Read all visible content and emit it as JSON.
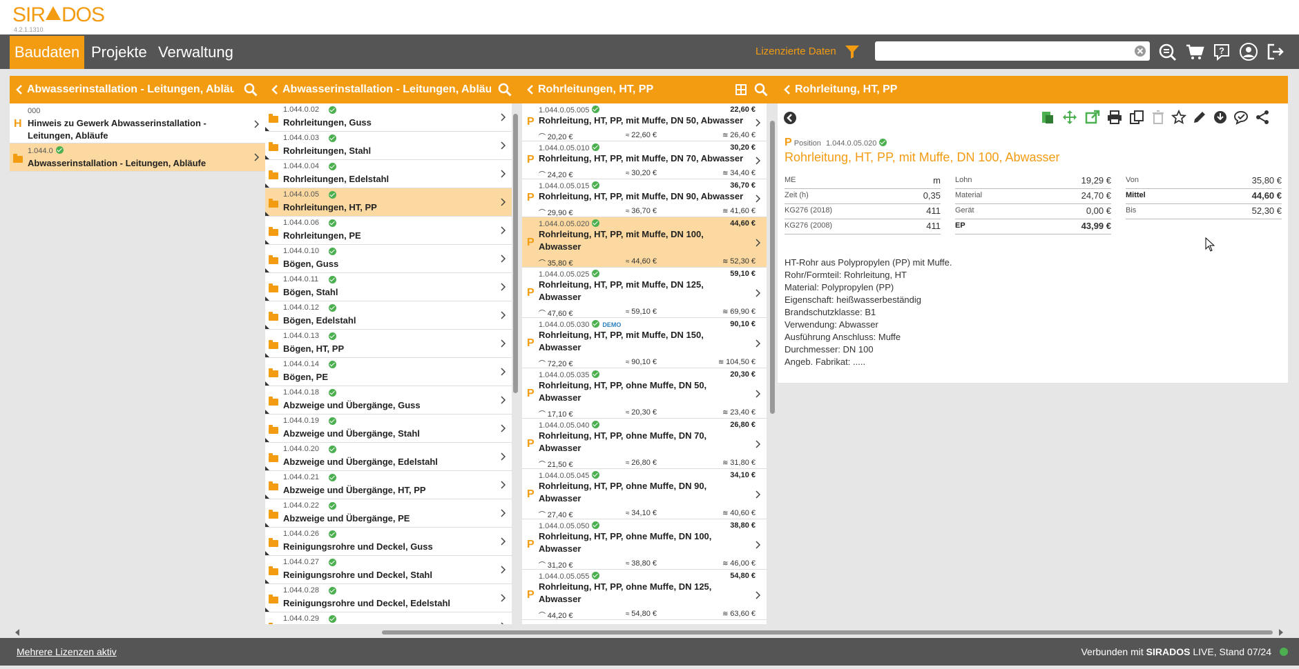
{
  "app": {
    "logo_left": "SIR",
    "logo_right": "DOS",
    "version": "4.2.1.1310"
  },
  "nav": {
    "tabs": [
      "Baudaten",
      "Projekte",
      "Verwaltung"
    ],
    "licensed_label": "Lizenzierte Daten",
    "search_value": ""
  },
  "col1": {
    "title": "Abwasserinstallation - Leitungen, Abläufe",
    "items": [
      {
        "letter": "H",
        "code": "000",
        "name1": "Hinweis zu Gewerk Abwasserinstallation -",
        "name2": "Leitungen, Abläufe"
      },
      {
        "code": "1.044.0",
        "name1": "Abwasserinstallation - Leitungen, Abläufe"
      }
    ]
  },
  "col2": {
    "title": "Abwasserinstallation - Leitungen, Abläufe",
    "items": [
      {
        "code": "1.044.0.02",
        "name": "Rohrleitungen, Guss"
      },
      {
        "code": "1.044.0.03",
        "name": "Rohrleitungen, Stahl"
      },
      {
        "code": "1.044.0.04",
        "name": "Rohrleitungen, Edelstahl"
      },
      {
        "code": "1.044.0.05",
        "name": "Rohrleitungen, HT, PP"
      },
      {
        "code": "1.044.0.06",
        "name": "Rohrleitungen, PE"
      },
      {
        "code": "1.044.0.10",
        "name": "Bögen, Guss"
      },
      {
        "code": "1.044.0.11",
        "name": "Bögen, Stahl"
      },
      {
        "code": "1.044.0.12",
        "name": "Bögen, Edelstahl"
      },
      {
        "code": "1.044.0.13",
        "name": "Bögen, HT, PP"
      },
      {
        "code": "1.044.0.14",
        "name": "Bögen, PE"
      },
      {
        "code": "1.044.0.18",
        "name": "Abzweige und Übergänge, Guss"
      },
      {
        "code": "1.044.0.19",
        "name": "Abzweige und Übergänge, Stahl"
      },
      {
        "code": "1.044.0.20",
        "name": "Abzweige und Übergänge, Edelstahl"
      },
      {
        "code": "1.044.0.21",
        "name": "Abzweige und Übergänge, HT, PP"
      },
      {
        "code": "1.044.0.22",
        "name": "Abzweige und Übergänge, PE"
      },
      {
        "code": "1.044.0.26",
        "name": "Reinigungsrohre und Deckel, Guss"
      },
      {
        "code": "1.044.0.27",
        "name": "Reinigungsrohre und Deckel, Stahl"
      },
      {
        "code": "1.044.0.28",
        "name": "Reinigungsrohre und Deckel, Edelstahl"
      },
      {
        "code": "1.044.0.29",
        "name": ""
      }
    ]
  },
  "col3": {
    "title": "Rohrleitungen, HT, PP",
    "items": [
      {
        "code": "1.044.0.05.005",
        "name1": "Rohrleitung, HT, PP, mit Muffe, DN 50, Abwasser",
        "name2": "",
        "price": "22,60 €",
        "min": "20,20 €",
        "mid": "22,60 €",
        "max": "26,40 €"
      },
      {
        "code": "1.044.0.05.010",
        "name1": "Rohrleitung, HT, PP, mit Muffe, DN 70, Abwasser",
        "name2": "",
        "price": "30,20 €",
        "min": "24,20 €",
        "mid": "30,20 €",
        "max": "34,40 €"
      },
      {
        "code": "1.044.0.05.015",
        "name1": "Rohrleitung, HT, PP, mit Muffe, DN 90, Abwasser",
        "name2": "",
        "price": "36,70 €",
        "min": "29,90 €",
        "mid": "36,70 €",
        "max": "41,60 €"
      },
      {
        "code": "1.044.0.05.020",
        "name1": "Rohrleitung, HT, PP, mit Muffe, DN 100,",
        "name2": "Abwasser",
        "price": "44,60 €",
        "min": "35,80 €",
        "mid": "44,60 €",
        "max": "52,30 €"
      },
      {
        "code": "1.044.0.05.025",
        "name1": "Rohrleitung, HT, PP, mit Muffe, DN 125,",
        "name2": "Abwasser",
        "price": "59,10 €",
        "min": "47,60 €",
        "mid": "59,10 €",
        "max": "69,90 €"
      },
      {
        "code": "1.044.0.05.030",
        "demo": "DEMO",
        "name1": "Rohrleitung, HT, PP, mit Muffe, DN 150,",
        "name2": "Abwasser",
        "price": "90,10 €",
        "min": "72,20 €",
        "mid": "90,10 €",
        "max": "104,50 €"
      },
      {
        "code": "1.044.0.05.035",
        "name1": "Rohrleitung, HT, PP, ohne Muffe, DN 50,",
        "name2": "Abwasser",
        "price": "20,30 €",
        "min": "17,10 €",
        "mid": "20,30 €",
        "max": "23,40 €"
      },
      {
        "code": "1.044.0.05.040",
        "name1": "Rohrleitung, HT, PP, ohne Muffe, DN 70,",
        "name2": "Abwasser",
        "price": "26,80 €",
        "min": "21,50 €",
        "mid": "26,80 €",
        "max": "31,80 €"
      },
      {
        "code": "1.044.0.05.045",
        "name1": "Rohrleitung, HT, PP, ohne Muffe, DN 90,",
        "name2": "Abwasser",
        "price": "34,10 €",
        "min": "27,40 €",
        "mid": "34,10 €",
        "max": "40,60 €"
      },
      {
        "code": "1.044.0.05.050",
        "name1": "Rohrleitung, HT, PP, ohne Muffe, DN 100,",
        "name2": "Abwasser",
        "price": "38,80 €",
        "min": "31,20 €",
        "mid": "38,80 €",
        "max": "46,00 €"
      },
      {
        "code": "1.044.0.05.055",
        "name1": "Rohrleitung, HT, PP, ohne Muffe, DN 125,",
        "name2": "Abwasser",
        "price": "54,80 €",
        "min": "44,20 €",
        "mid": "54,80 €",
        "max": "63,60 €"
      }
    ]
  },
  "detail": {
    "title": "Rohrleitung, HT, PP",
    "position_label": "Position",
    "position_code": "1.044.0.05.020",
    "position_title": "Rohrleitung, HT, PP, mit Muffe, DN 100, Abwasser",
    "grid1": [
      {
        "label": "ME",
        "value": "m"
      },
      {
        "label": "Zeit (h)",
        "value": "0,35"
      },
      {
        "label": "KG276 (2018)",
        "value": "411"
      },
      {
        "label": "KG276 (2008)",
        "value": "411"
      }
    ],
    "grid2": [
      {
        "label": "Lohn",
        "value": "19,29 €"
      },
      {
        "label": "Material",
        "value": "24,70 €"
      },
      {
        "label": "Gerät",
        "value": "0,00 €"
      },
      {
        "label": "EP",
        "value": "43,99 €"
      }
    ],
    "grid3": [
      {
        "label": "Von",
        "value": "35,80 €"
      },
      {
        "label": "Mittel",
        "value": "44,60 €"
      },
      {
        "label": "Bis",
        "value": "52,30 €"
      }
    ],
    "description": [
      "HT-Rohr aus Polypropylen (PP) mit Muffe.",
      "Rohr/Formteil: Rohrleitung, HT",
      "Material: Polypropylen (PP)",
      "Eigenschaft: heißwasserbeständig",
      "Brandschutzklasse: B1",
      "Verwendung: Abwasser",
      "Ausführung Anschluss: Muffe",
      "Durchmesser: DN 100",
      "Angeb. Fabrikat: ....."
    ]
  },
  "status": {
    "left": "Mehrere Lizenzen aktiv",
    "right_prefix": "Verbunden mit",
    "right_brand": "SIRADOS",
    "right_suffix": "LIVE, Stand 07/24"
  },
  "colors": {
    "accent": "#f39c12",
    "nav": "#555555",
    "selected": "#fbd9a0",
    "ok": "#4caf50"
  }
}
